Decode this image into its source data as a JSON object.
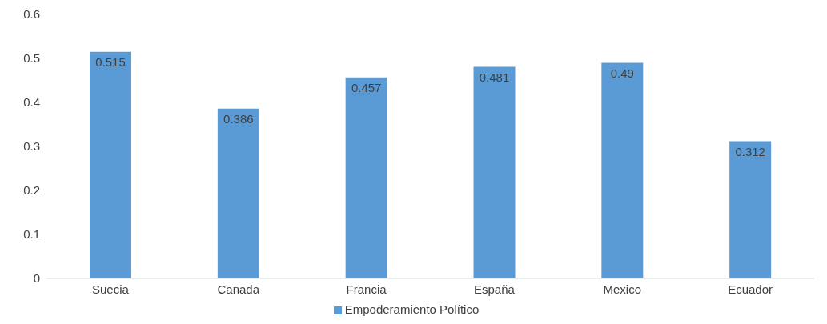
{
  "chart_data": {
    "type": "bar",
    "categories": [
      "Suecia",
      "Canada",
      "Francia",
      "España",
      "Mexico",
      "Ecuador"
    ],
    "series": [
      {
        "name": "Empoderamiento Político",
        "color": "#5b9bd5",
        "values": [
          0.515,
          0.386,
          0.457,
          0.481,
          0.49,
          0.312
        ]
      }
    ],
    "ylim": [
      0,
      0.6
    ],
    "yticks": [
      0,
      0.1,
      0.2,
      0.3,
      0.4,
      0.5,
      0.6
    ],
    "data_labels": true,
    "legend": "bottom"
  }
}
